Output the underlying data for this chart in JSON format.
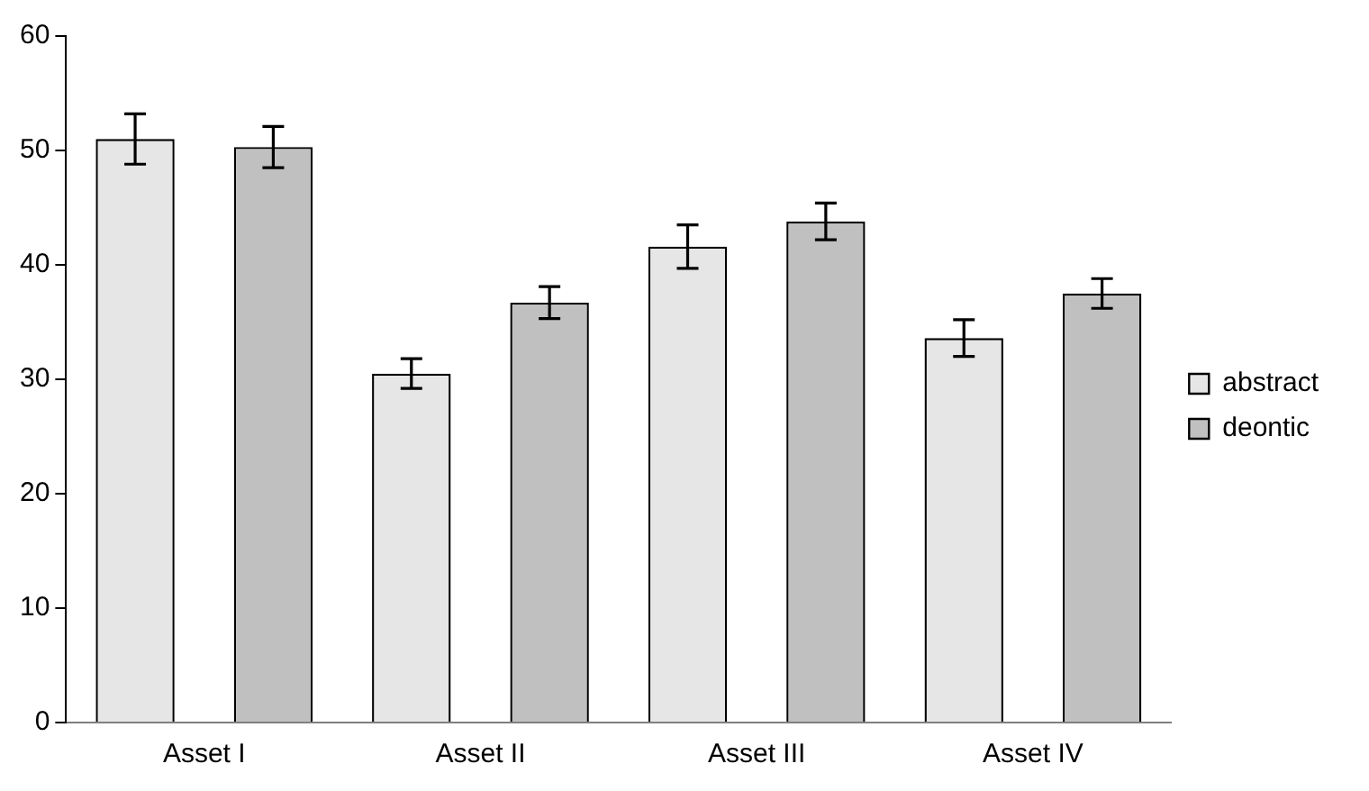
{
  "chart_data": {
    "type": "bar",
    "categories": [
      "Asset I",
      "Asset II",
      "Asset III",
      "Asset IV"
    ],
    "series": [
      {
        "name": "abstract",
        "color": "#e6e6e6",
        "values": [
          51.0,
          30.5,
          41.6,
          33.6
        ],
        "errors": [
          2.2,
          1.3,
          1.9,
          1.6
        ]
      },
      {
        "name": "deontic",
        "color": "#c0c0c0",
        "values": [
          50.3,
          36.7,
          43.8,
          37.5
        ],
        "errors": [
          1.8,
          1.4,
          1.6,
          1.3
        ]
      }
    ],
    "ylim": [
      0,
      60
    ],
    "yticks": [
      0,
      10,
      20,
      30,
      40,
      50,
      60
    ],
    "grid": false,
    "legend": "right"
  }
}
